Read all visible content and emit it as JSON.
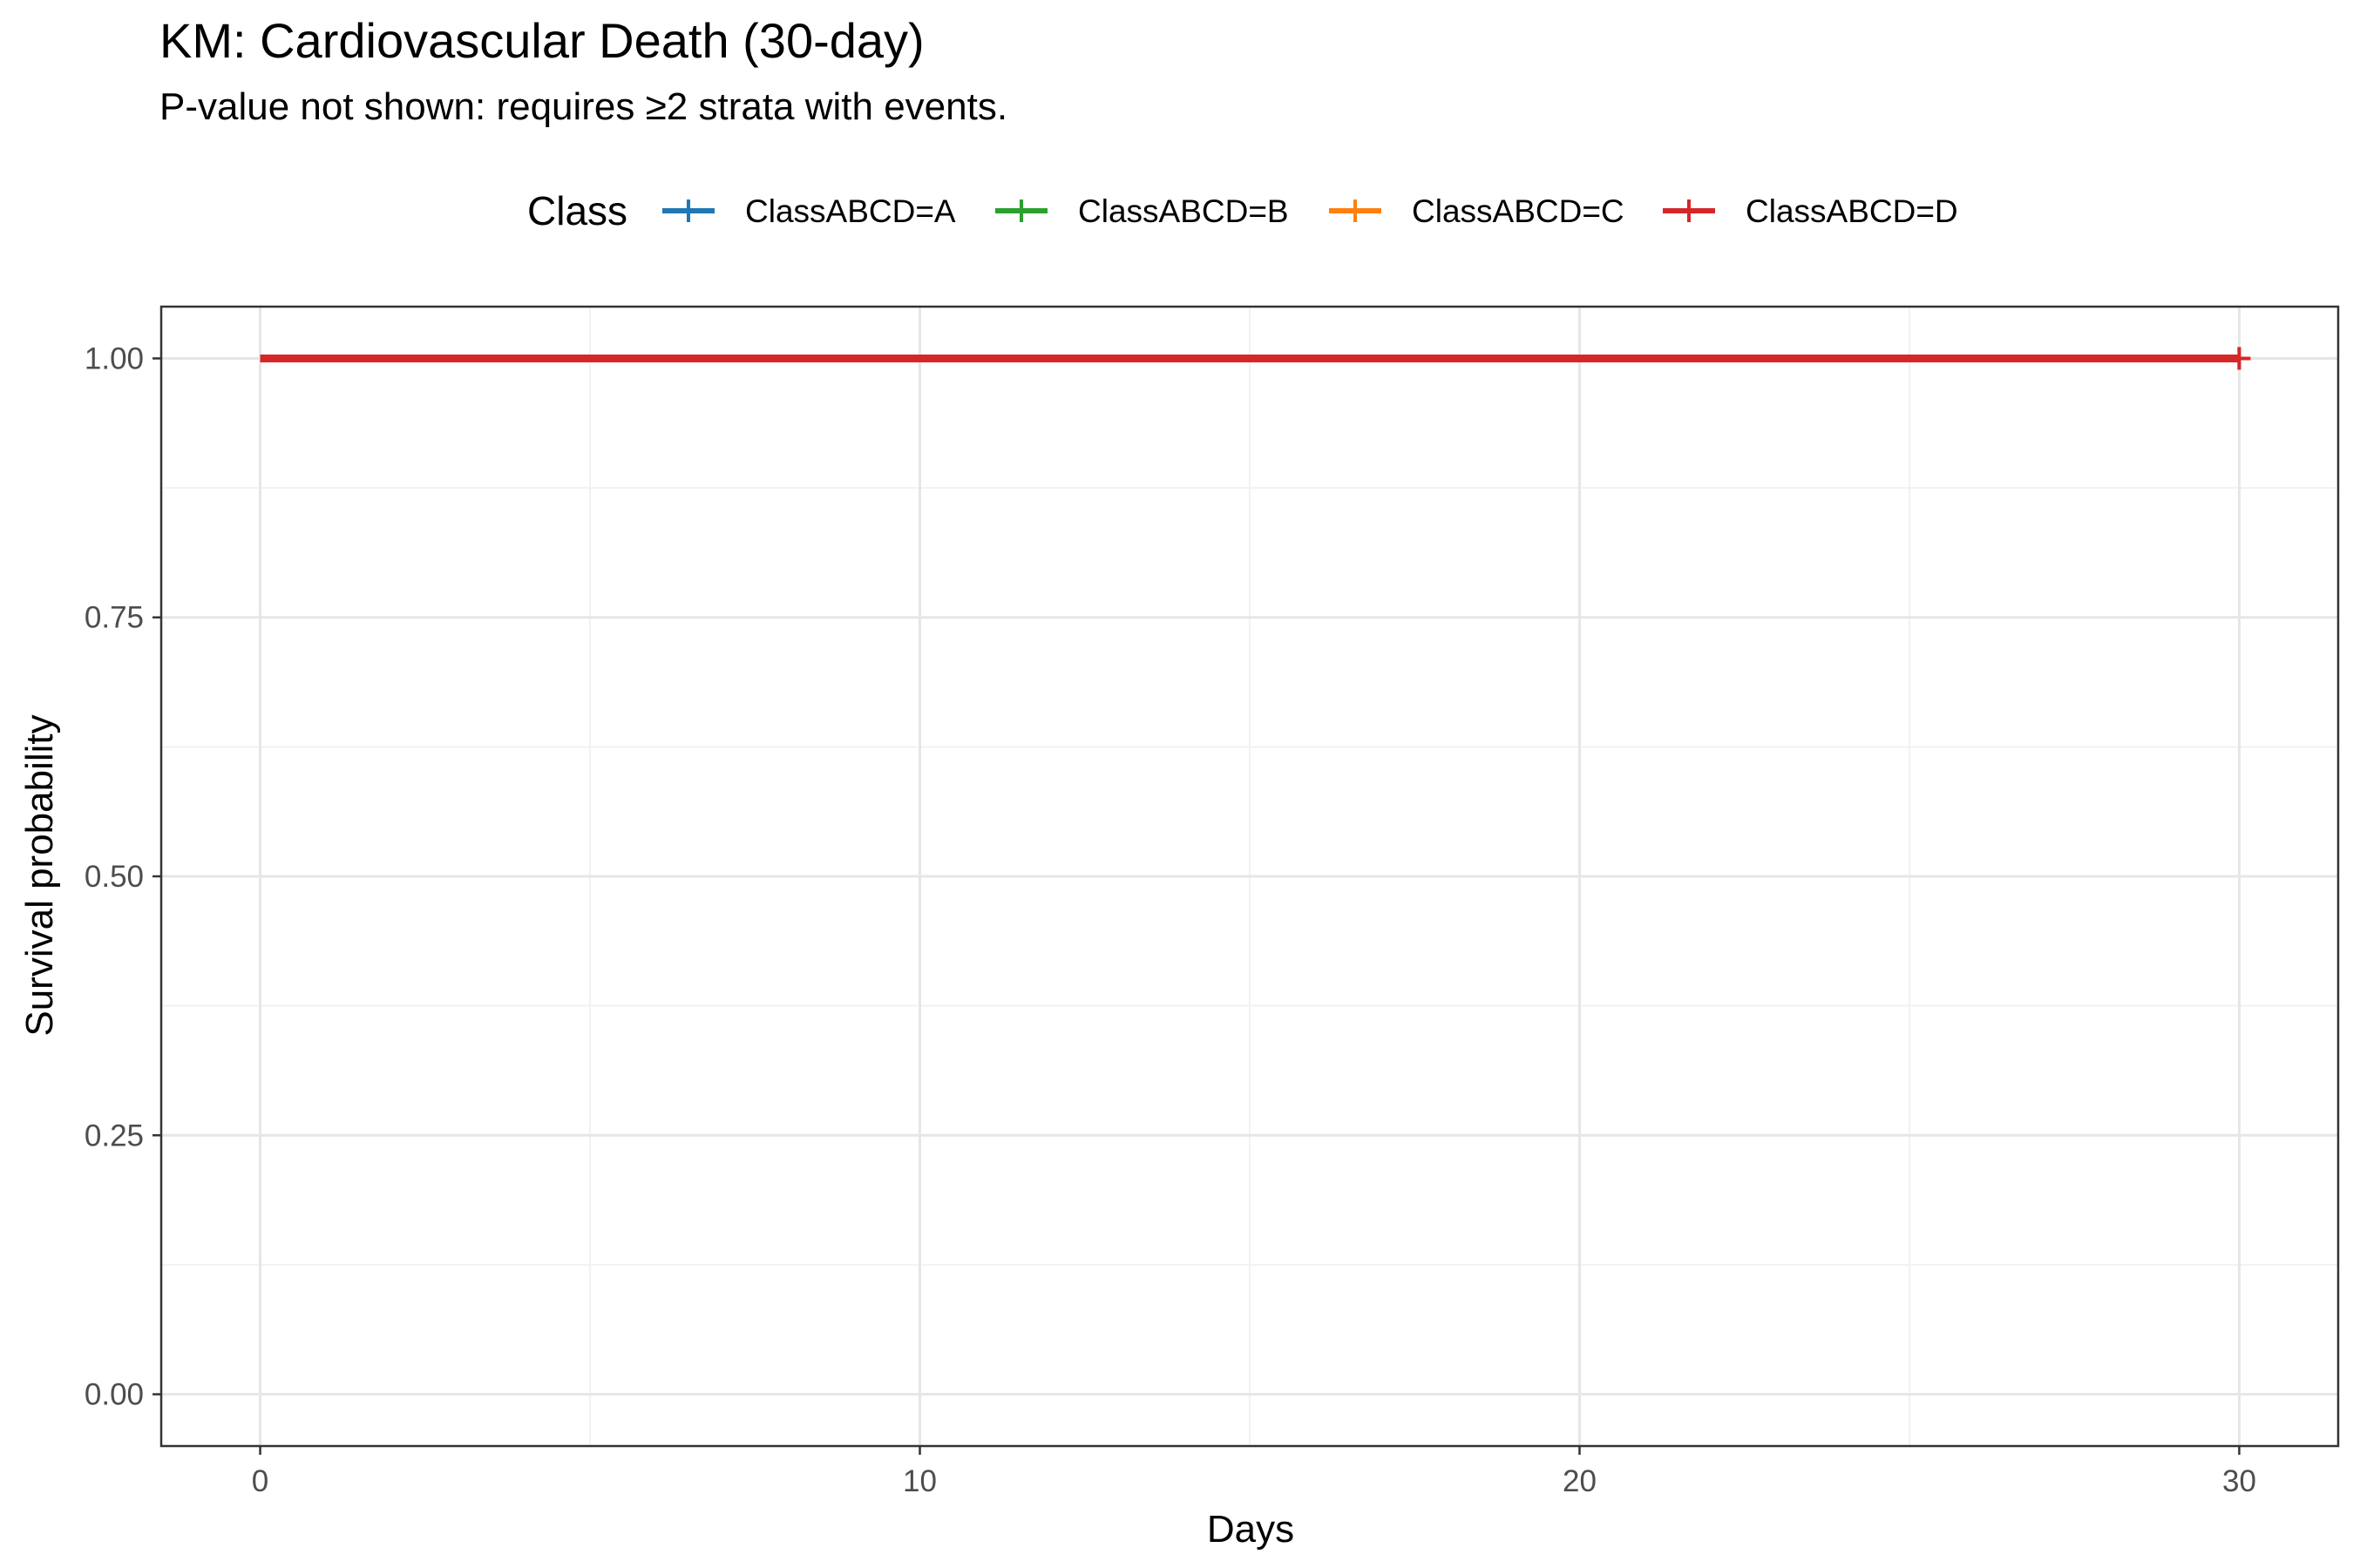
{
  "chart_data": {
    "type": "line",
    "title": "KM: Cardiovascular Death (30-day)",
    "subtitle": "P-value not shown: requires ≥2 strata with events.",
    "xlabel": "Days",
    "ylabel": "Survival probability",
    "xlim": [
      -1.5,
      31.5
    ],
    "ylim": [
      -0.05,
      1.05
    ],
    "x_ticks": [
      0,
      10,
      20,
      30
    ],
    "x_tick_labels": [
      "0",
      "10",
      "20",
      "30"
    ],
    "y_ticks": [
      0,
      0.25,
      0.5,
      0.75,
      1.0
    ],
    "y_tick_labels": [
      "0.00",
      "0.25",
      "0.50",
      "0.75",
      "1.00"
    ],
    "grid": true,
    "legend": {
      "title": "Class",
      "placement": "top",
      "entries": [
        "ClassABCD=A",
        "ClassABCD=B",
        "ClassABCD=C",
        "ClassABCD=D"
      ]
    },
    "series": [
      {
        "name": "ClassABCD=A",
        "color": "#1f77b4",
        "x": [
          0,
          30
        ],
        "y": [
          1,
          1
        ],
        "censor_x": [
          30
        ]
      },
      {
        "name": "ClassABCD=B",
        "color": "#2ca02c",
        "x": [
          0,
          30
        ],
        "y": [
          1,
          1
        ],
        "censor_x": [
          30
        ]
      },
      {
        "name": "ClassABCD=C",
        "color": "#ff7f0e",
        "x": [
          0,
          30
        ],
        "y": [
          1,
          1
        ],
        "censor_x": [
          30
        ]
      },
      {
        "name": "ClassABCD=D",
        "color": "#d62728",
        "x": [
          0,
          30
        ],
        "y": [
          1,
          1
        ],
        "censor_x": [
          30
        ]
      }
    ]
  }
}
